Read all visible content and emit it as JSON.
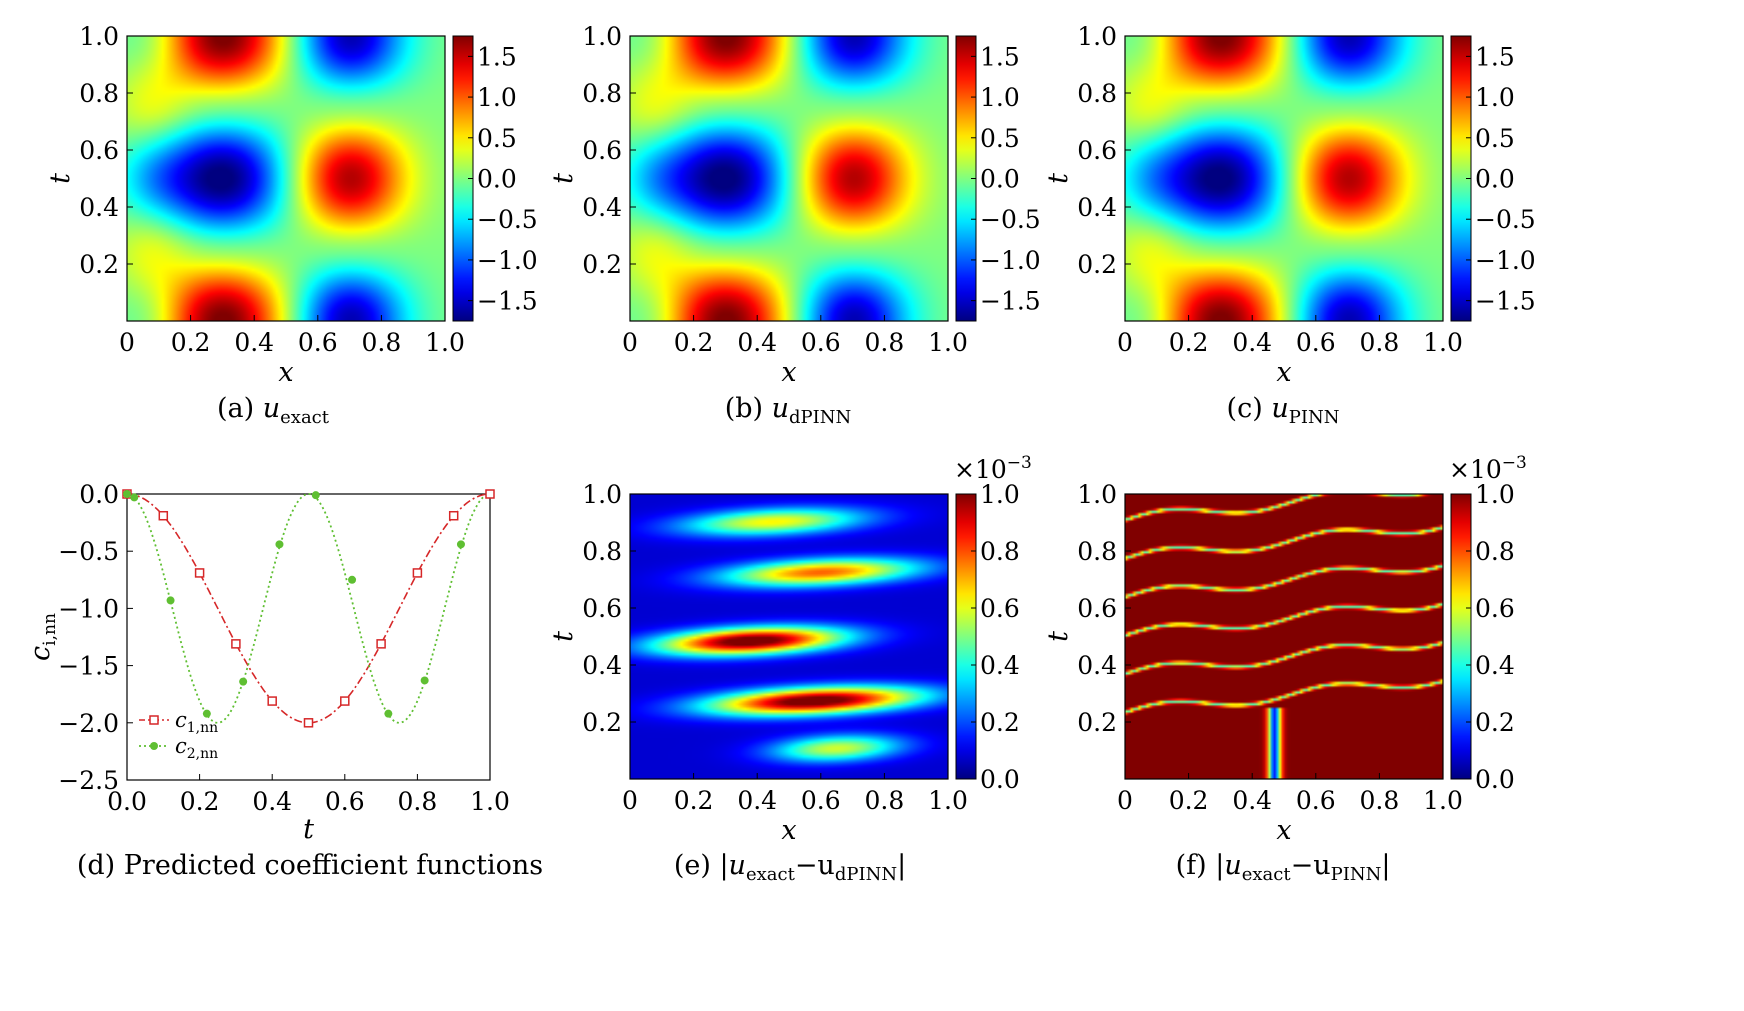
{
  "colors": {
    "c1_series": "#d62728",
    "c2_series": "#5fbf32",
    "colormap": "jet"
  },
  "panels": {
    "a": {
      "caption_label": "(a)",
      "caption_var": "u",
      "caption_sub": "exact"
    },
    "b": {
      "caption_label": "(b)",
      "caption_var": "u",
      "caption_sub": "dPINN"
    },
    "c": {
      "caption_label": "(c)",
      "caption_var": "u",
      "caption_sub": "PINN"
    },
    "d": {
      "caption": "(d) Predicted coefficient functions"
    },
    "e": {
      "caption_label": "(e)",
      "caption_expr": "|u",
      "caption_sub1": "exact",
      "caption_mid": "−u",
      "caption_sub2": "dPINN",
      "caption_end": "|"
    },
    "f": {
      "caption_label": "(f)",
      "caption_expr": "|u",
      "caption_sub1": "exact",
      "caption_mid": "−u",
      "caption_sub2": "PINN",
      "caption_end": "|"
    }
  },
  "chart_data": [
    {
      "id": "a",
      "type": "heatmap",
      "field": "u_exact",
      "xlabel": "x",
      "ylabel": "t",
      "xlim": [
        0,
        1
      ],
      "ylim": [
        0,
        1
      ],
      "x_ticks": [
        "0",
        "0.2",
        "0.4",
        "0.6",
        "0.8",
        "1.0"
      ],
      "y_ticks": [
        "0.2",
        "0.4",
        "0.6",
        "0.8",
        "1.0"
      ],
      "colorbar": {
        "range": [
          -1.75,
          1.75
        ],
        "ticks": [
          "1.5",
          "1.0",
          "0.5",
          "0.0",
          "−0.5",
          "−1.0",
          "−1.5"
        ]
      }
    },
    {
      "id": "b",
      "type": "heatmap",
      "field": "u_dPINN",
      "xlabel": "x",
      "ylabel": "t",
      "xlim": [
        0,
        1
      ],
      "ylim": [
        0,
        1
      ],
      "x_ticks": [
        "0",
        "0.2",
        "0.4",
        "0.6",
        "0.8",
        "1.0"
      ],
      "y_ticks": [
        "0.2",
        "0.4",
        "0.6",
        "0.8",
        "1.0"
      ],
      "colorbar": {
        "range": [
          -1.75,
          1.75
        ],
        "ticks": [
          "1.5",
          "1.0",
          "0.5",
          "0.0",
          "−0.5",
          "−1.0",
          "−1.5"
        ]
      }
    },
    {
      "id": "c",
      "type": "heatmap",
      "field": "u_PINN",
      "xlabel": "x",
      "ylabel": "t",
      "xlim": [
        0,
        1
      ],
      "ylim": [
        0,
        1
      ],
      "x_ticks": [
        "0",
        "0.2",
        "0.4",
        "0.6",
        "0.8",
        "1.0"
      ],
      "y_ticks": [
        "0.2",
        "0.4",
        "0.6",
        "0.8",
        "1.0"
      ],
      "colorbar": {
        "range": [
          -1.75,
          1.75
        ],
        "ticks": [
          "1.5",
          "1.0",
          "0.5",
          "0.0",
          "−0.5",
          "−1.0",
          "−1.5"
        ]
      }
    },
    {
      "id": "d",
      "type": "line",
      "xlabel": "t",
      "ylabel": "c",
      "ylabel_sub": "i,nn",
      "xlim": [
        0,
        1
      ],
      "ylim": [
        -2.5,
        0
      ],
      "x_ticks": [
        "0.0",
        "0.2",
        "0.4",
        "0.6",
        "0.8",
        "1.0"
      ],
      "y_ticks": [
        "0.0",
        "−0.5",
        "−1.0",
        "−1.5",
        "−2.0",
        "−2.5"
      ],
      "legend_position": "lower-left",
      "series": [
        {
          "name": "c",
          "name_sub": "1,nn",
          "x": [
            0.0,
            0.1,
            0.2,
            0.3,
            0.4,
            0.5,
            0.6,
            0.7,
            0.8,
            0.9,
            1.0
          ],
          "y": [
            0.0,
            -0.19,
            -0.69,
            -1.31,
            -1.81,
            -2.0,
            -1.81,
            -1.31,
            -0.69,
            -0.19,
            0.0
          ]
        },
        {
          "name": "c",
          "name_sub": "2,nn",
          "x": [
            0.0,
            0.02,
            0.12,
            0.22,
            0.32,
            0.42,
            0.52,
            0.62,
            0.72,
            0.82,
            0.92
          ],
          "y": [
            0.0,
            -0.03,
            -0.93,
            -1.92,
            -1.64,
            -0.44,
            -0.01,
            -0.75,
            -1.92,
            -1.63,
            -0.44
          ]
        }
      ]
    },
    {
      "id": "e",
      "type": "heatmap",
      "field": "abs_error_dPINN",
      "xlabel": "x",
      "ylabel": "t",
      "xlim": [
        0,
        1
      ],
      "ylim": [
        0,
        1
      ],
      "x_ticks": [
        "0",
        "0.2",
        "0.4",
        "0.6",
        "0.8",
        "1.0"
      ],
      "y_ticks": [
        "0.2",
        "0.4",
        "0.6",
        "0.8",
        "1.0"
      ],
      "colorbar": {
        "range": [
          0,
          1.0
        ],
        "ticks": [
          "1.0",
          "0.8",
          "0.6",
          "0.4",
          "0.2",
          "0.0"
        ],
        "scale_label": "×10",
        "scale_exp": "−3"
      }
    },
    {
      "id": "f",
      "type": "heatmap",
      "field": "abs_error_PINN",
      "xlabel": "x",
      "ylabel": "t",
      "xlim": [
        0,
        1
      ],
      "ylim": [
        0,
        1
      ],
      "x_ticks": [
        "0",
        "0.2",
        "0.4",
        "0.6",
        "0.8",
        "1.0"
      ],
      "y_ticks": [
        "0.2",
        "0.4",
        "0.6",
        "0.8",
        "1.0"
      ],
      "colorbar": {
        "range": [
          0,
          1.0
        ],
        "ticks": [
          "1.0",
          "0.8",
          "0.6",
          "0.4",
          "0.2",
          "0.0"
        ],
        "scale_label": "×10",
        "scale_exp": "−3"
      }
    }
  ]
}
